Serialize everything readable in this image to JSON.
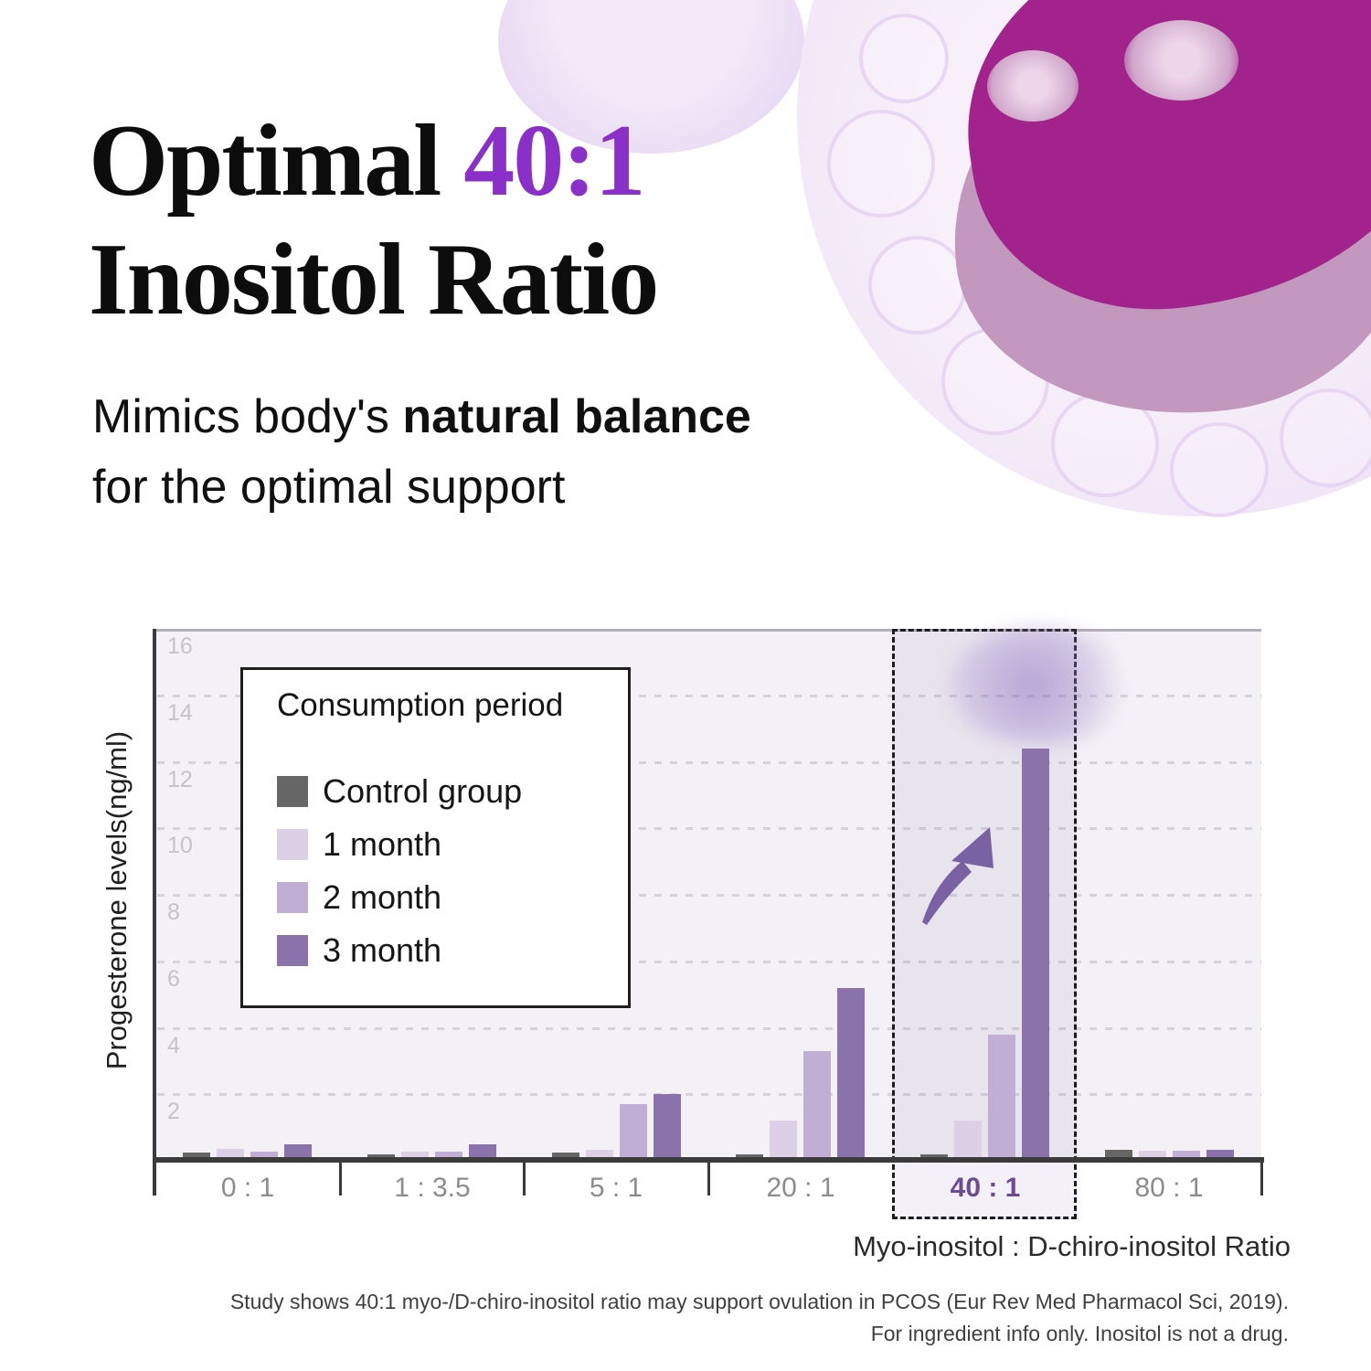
{
  "header": {
    "title_line1_black": "Optimal ",
    "title_line1_accent": "40:1",
    "title_line2": "Inositol Ratio",
    "subtitle_prefix": "Mimics body's ",
    "subtitle_bold": "natural balance",
    "subtitle_line2": "for the optimal support",
    "accent_color": "#8a2fc8"
  },
  "chart_data": {
    "type": "bar",
    "title": "",
    "ylabel": "Progesterone levels(ng/ml)",
    "xlabel": "Myo-inositol : D-chiro-inositol Ratio",
    "ylim": [
      0,
      16
    ],
    "yticks": [
      2,
      4,
      6,
      8,
      10,
      12,
      14,
      16
    ],
    "grid": "dashed-horizontal",
    "categories": [
      "0 : 1",
      "1 : 3.5",
      "5 : 1",
      "20 : 1",
      "40 : 1",
      "80 : 1"
    ],
    "highlight_category": "40 : 1",
    "highlight_note": "upward trend arrow beside tallest bar",
    "legend_position": "upper-left-inside",
    "legend_title": "Consumption period",
    "series": [
      {
        "name": "Control group",
        "color": "#666666",
        "values": [
          0.25,
          0.2,
          0.24,
          0.2,
          0.2,
          0.33
        ]
      },
      {
        "name": "1 month",
        "color": "#dcd0e6",
        "values": [
          0.35,
          0.27,
          0.33,
          1.2,
          1.2,
          0.3
        ]
      },
      {
        "name": "2 month",
        "color": "#c1aed5",
        "values": [
          0.28,
          0.27,
          1.7,
          3.3,
          3.8,
          0.3
        ]
      },
      {
        "name": "3 month",
        "color": "#8a73ab",
        "values": [
          0.5,
          0.5,
          2.0,
          5.2,
          12.4,
          0.32
        ]
      }
    ]
  },
  "footer": {
    "footnote_line1": "Study shows 40:1 myo-/D-chiro-inositol ratio may support ovulation in PCOS (Eur Rev Med Pharmacol Sci, 2019).",
    "footnote_line2": "For ingredient info only. Inositol is not a drug."
  }
}
